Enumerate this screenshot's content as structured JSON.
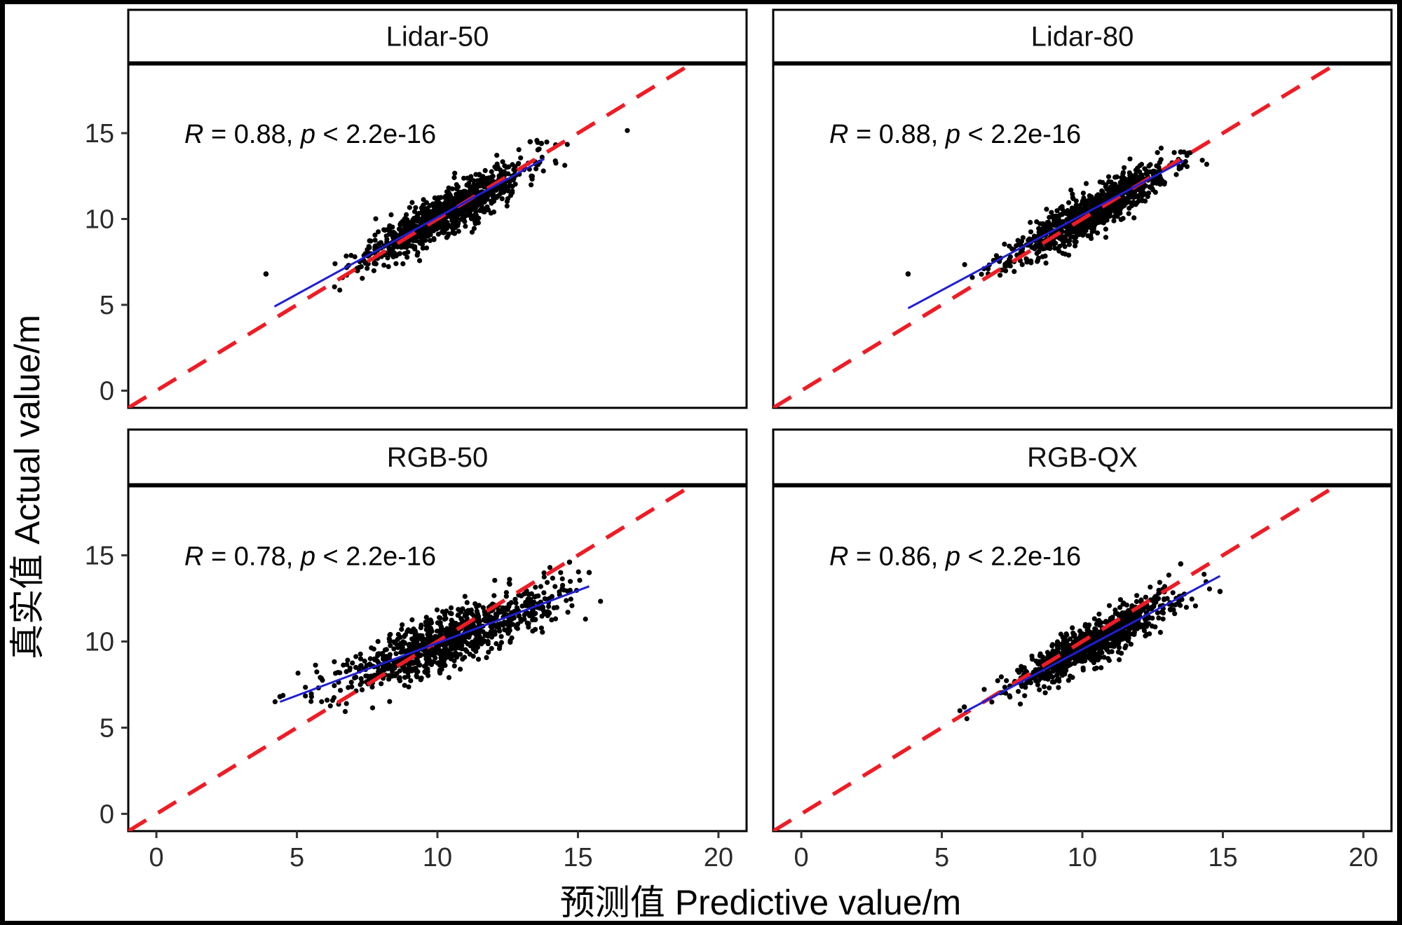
{
  "chart_data": {
    "type": "scatter",
    "xlabel": "预测值 Predictive value/m",
    "ylabel": "真实值 Actual value/m",
    "xlim": [
      -1,
      21
    ],
    "ylim": [
      -1,
      19
    ],
    "xticks": [
      0,
      5,
      10,
      15,
      20
    ],
    "yticks": [
      0,
      5,
      10,
      15
    ],
    "reference_line": {
      "label": "y = x",
      "color": "#ee1c25",
      "style": "dashed"
    },
    "fit_line_color": "#1f1fd6",
    "point_color": "#000000",
    "panels": [
      {
        "title": "Lidar-50",
        "annotation": {
          "r_symbol": "R",
          "r_text": " = 0.88, ",
          "p_symbol": "p",
          "p_text": " < 2.2e-16"
        },
        "fit_line": {
          "x": [
            4.2,
            13.8
          ],
          "y": [
            4.9,
            13.5
          ]
        },
        "cloud": {
          "x_center": 10.3,
          "x_sd": 1.4,
          "slope": 0.9,
          "intercept": 1.1,
          "residual_sd": 0.65,
          "n": 900,
          "seed": 11
        },
        "outliers": [
          {
            "x": 3.9,
            "y": 6.8
          },
          {
            "x": 13.7,
            "y": 14.4
          },
          {
            "x": 13.3,
            "y": 14.5
          }
        ]
      },
      {
        "title": "Lidar-80",
        "annotation": {
          "r_symbol": "R",
          "r_text": " = 0.88, ",
          "p_symbol": "p",
          "p_text": " < 2.2e-16"
        },
        "fit_line": {
          "x": [
            3.8,
            13.6
          ],
          "y": [
            4.8,
            13.4
          ]
        },
        "cloud": {
          "x_center": 10.2,
          "x_sd": 1.4,
          "slope": 0.88,
          "intercept": 1.3,
          "residual_sd": 0.6,
          "n": 900,
          "seed": 23
        },
        "outliers": [
          {
            "x": 3.8,
            "y": 6.8
          },
          {
            "x": 13.5,
            "y": 13.9
          }
        ]
      },
      {
        "title": "RGB-50",
        "annotation": {
          "r_symbol": "R",
          "r_text": " = 0.78, ",
          "p_symbol": "p",
          "p_text": " < 2.2e-16"
        },
        "fit_line": {
          "x": [
            4.4,
            15.4
          ],
          "y": [
            6.5,
            13.2
          ]
        },
        "cloud": {
          "x_center": 10.4,
          "x_sd": 1.9,
          "slope": 0.61,
          "intercept": 3.8,
          "residual_sd": 0.8,
          "n": 900,
          "seed": 37
        },
        "outliers": [
          {
            "x": 4.4,
            "y": 6.8
          },
          {
            "x": 15.4,
            "y": 14.0
          },
          {
            "x": 14.7,
            "y": 14.6
          }
        ]
      },
      {
        "title": "RGB-QX",
        "annotation": {
          "r_symbol": "R",
          "r_text": " = 0.86, ",
          "p_symbol": "p",
          "p_text": " < 2.2e-16"
        },
        "fit_line": {
          "x": [
            5.8,
            14.9
          ],
          "y": [
            5.9,
            13.8
          ]
        },
        "cloud": {
          "x_center": 10.5,
          "x_sd": 1.4,
          "slope": 0.87,
          "intercept": 0.9,
          "residual_sd": 0.6,
          "n": 900,
          "seed": 53
        },
        "outliers": [
          {
            "x": 5.8,
            "y": 6.2
          },
          {
            "x": 14.9,
            "y": 12.9
          },
          {
            "x": 13.5,
            "y": 14.5
          }
        ]
      }
    ]
  }
}
